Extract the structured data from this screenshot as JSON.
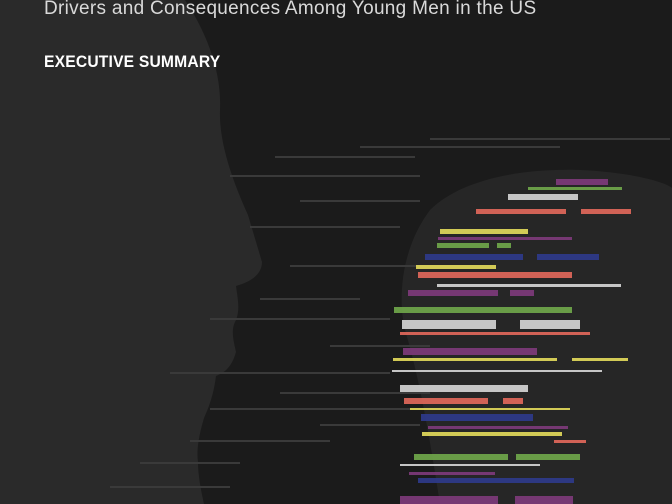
{
  "cover": {
    "subtitle": "Drivers and Consequences Among Young Men in the US",
    "section_label": "EXECUTIVE SUMMARY"
  },
  "colors": {
    "background": "#1b1b1b",
    "silhouette": "#2b2b2b",
    "bar_palette": [
      "#6fa64a",
      "#e0675a",
      "#d4d4d4",
      "#7d3a7a",
      "#2e3a8a",
      "#e1d85a",
      "#a04064"
    ]
  }
}
